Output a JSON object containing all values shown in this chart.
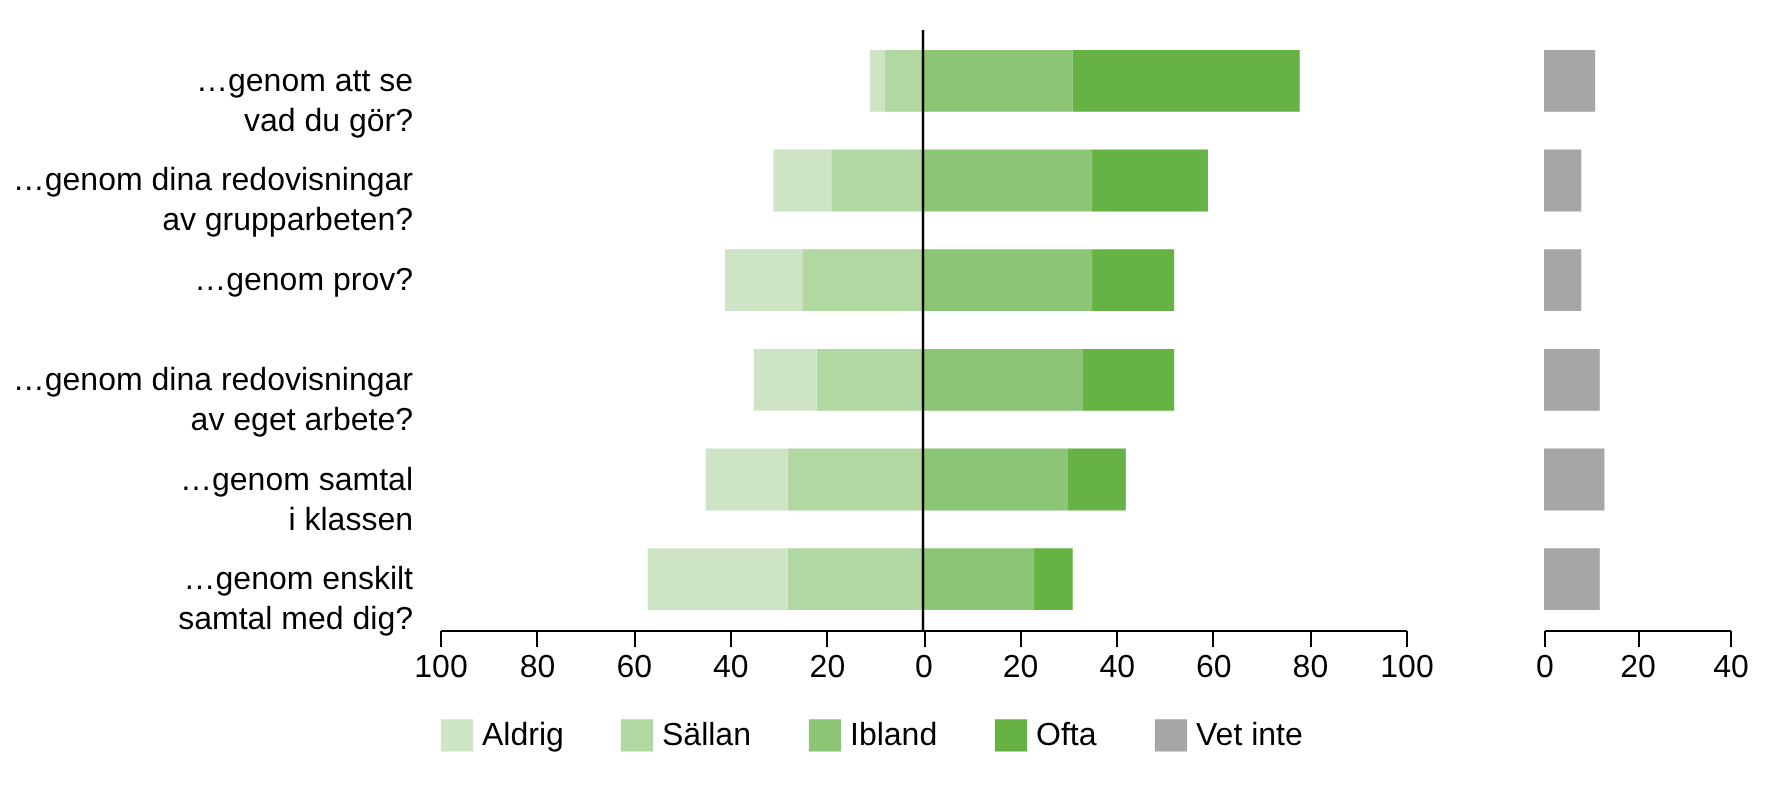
{
  "chart_data": [
    {
      "type": "bar",
      "orientation": "horizontal",
      "stacked": true,
      "legend": "bottom",
      "categories": [
        "…genom att se\nvad du gör?",
        "…genom dina redovisningar\nav grupparbeten?",
        "…genom prov?",
        "…genom dina redovisningar\nav eget arbete?",
        "…genom samtal\ni klassen",
        "…genom enskilt\nsamtal med dig?"
      ],
      "series": [
        {
          "name": "Aldrig",
          "color": "#cde5c4",
          "values": [
            -3,
            -12,
            -16,
            -13,
            -17,
            -29
          ]
        },
        {
          "name": "Sällan",
          "color": "#b1d8a1",
          "values": [
            -8,
            -19,
            -25,
            -22,
            -28,
            -28
          ]
        },
        {
          "name": "Ibland",
          "color": "#8dc576",
          "values": [
            31,
            35,
            35,
            33,
            30,
            23
          ]
        },
        {
          "name": "Ofta",
          "color": "#66b245",
          "values": [
            47,
            24,
            17,
            19,
            12,
            8
          ]
        }
      ],
      "xlim": [
        -100,
        100
      ],
      "xticks": [
        {
          "value": -100,
          "label": "100"
        },
        {
          "value": -80,
          "label": "80"
        },
        {
          "value": -60,
          "label": "60"
        },
        {
          "value": -40,
          "label": "40"
        },
        {
          "value": -20,
          "label": "20"
        },
        0,
        20,
        40,
        60,
        80,
        100
      ],
      "ref_lines": [
        {
          "axis": "x",
          "value": 0,
          "color": "#000000"
        }
      ]
    },
    {
      "type": "bar",
      "orientation": "horizontal",
      "legend": "bottom",
      "tick_labels": "x",
      "categories": [
        null,
        null,
        null,
        null,
        null,
        null
      ],
      "series": [
        {
          "name": "Vet inte",
          "color": "#a6a6a6",
          "values": [
            11,
            8,
            8,
            12,
            13,
            12
          ]
        }
      ],
      "xlim": [
        0,
        40
      ],
      "xticks": [
        0,
        20,
        40
      ]
    }
  ]
}
